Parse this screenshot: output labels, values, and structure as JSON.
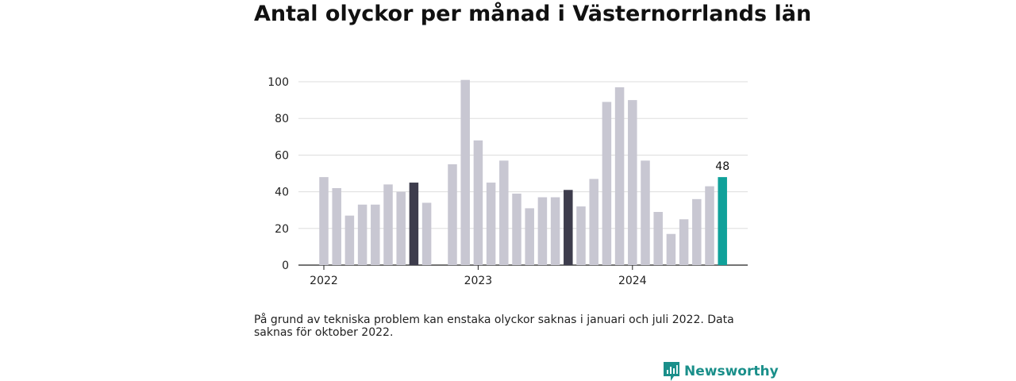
{
  "title": "Antal olyckor per månad i Västernorrlands län",
  "note": "På grund av tekniska problem kan enstaka olyckor saknas i januari och juli 2022. Data saknas för oktober 2022.",
  "brand": {
    "name": "Newsworthy",
    "color": "#1a8f8a"
  },
  "colors": {
    "bar": "#c8c7d2",
    "highlight": "#3d3c4c",
    "latest": "#10a19a",
    "grid": "#dddddd",
    "axis": "#222222"
  },
  "chart_data": {
    "type": "bar",
    "title": "Antal olyckor per månad i Västernorrlands län",
    "xlabel": "",
    "ylabel": "",
    "ylim": [
      0,
      100
    ],
    "yticks": [
      0,
      20,
      40,
      60,
      80,
      100
    ],
    "year_labels": [
      "2022",
      "2023",
      "2024"
    ],
    "grid": true,
    "categories": [
      "2022-01",
      "2022-02",
      "2022-03",
      "2022-04",
      "2022-05",
      "2022-06",
      "2022-07",
      "2022-08",
      "2022-09",
      "2022-10",
      "2022-11",
      "2022-12",
      "2023-01",
      "2023-02",
      "2023-03",
      "2023-04",
      "2023-05",
      "2023-06",
      "2023-07",
      "2023-08",
      "2023-09",
      "2023-10",
      "2023-11",
      "2023-12",
      "2024-01",
      "2024-02",
      "2024-03",
      "2024-04",
      "2024-05",
      "2024-06",
      "2024-07",
      "2024-08"
    ],
    "values": [
      48,
      42,
      27,
      33,
      33,
      44,
      40,
      45,
      34,
      null,
      55,
      101,
      68,
      45,
      57,
      39,
      31,
      37,
      37,
      41,
      32,
      47,
      89,
      97,
      90,
      57,
      29,
      17,
      25,
      36,
      43,
      48
    ],
    "highlighted": [
      "2022-08",
      "2023-08"
    ],
    "latest_label": "48"
  }
}
